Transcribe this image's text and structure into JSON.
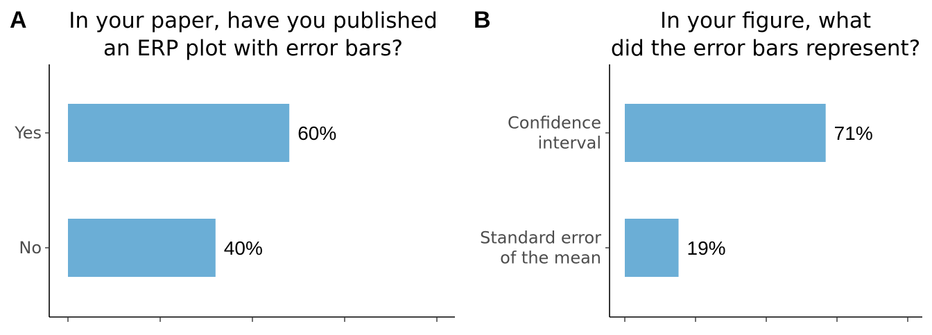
{
  "chart_data": [
    {
      "type": "bar",
      "orientation": "horizontal",
      "panel_label": "A",
      "title_lines": [
        "In your paper, have you published",
        "an ERP plot with error bars?"
      ],
      "categories": [
        [
          "Yes"
        ],
        [
          "No"
        ]
      ],
      "values": [
        60,
        40
      ],
      "value_labels": [
        "60%",
        "40%"
      ],
      "xlim": [
        0,
        100
      ],
      "x_ticks": [
        0,
        25,
        50,
        75,
        100
      ],
      "bar_color": "#6baed6",
      "grid": false
    },
    {
      "type": "bar",
      "orientation": "horizontal",
      "panel_label": "B",
      "title_lines": [
        "In your figure, what",
        "did the error bars represent?"
      ],
      "categories": [
        [
          "Confidence",
          "interval"
        ],
        [
          "Standard error",
          "of the mean"
        ]
      ],
      "values": [
        71,
        19
      ],
      "value_labels": [
        "71%",
        "19%"
      ],
      "xlim": [
        0,
        100
      ],
      "x_ticks": [
        0,
        25,
        50,
        75,
        100
      ],
      "bar_color": "#6baed6",
      "grid": false
    }
  ]
}
